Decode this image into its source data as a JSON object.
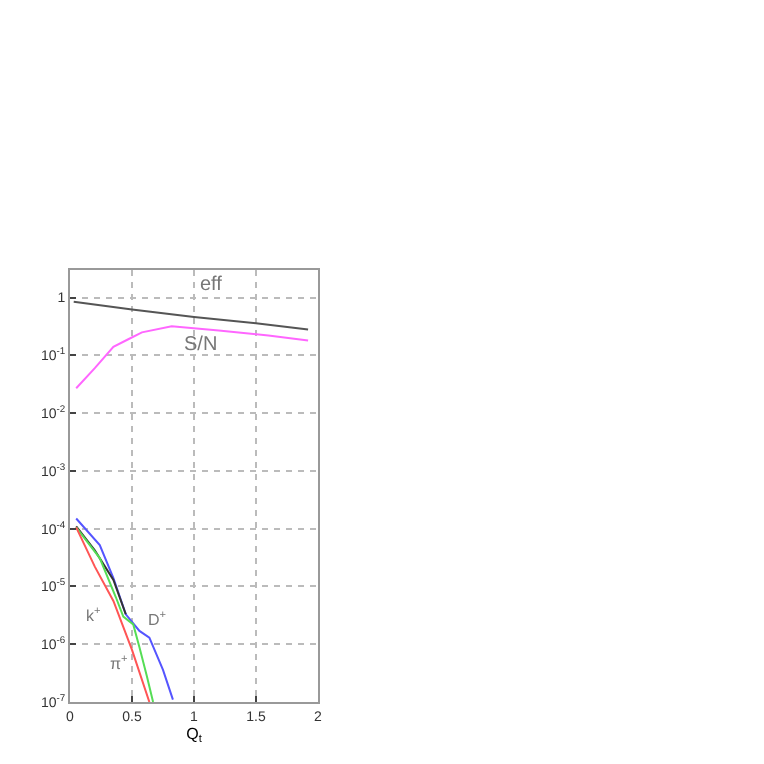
{
  "chart_data": {
    "type": "line",
    "xlabel": "Q$_{t}$",
    "log": "y",
    "grid": true,
    "marker": "none",
    "line_style": "solid",
    "xlim": [
      0,
      2
    ],
    "xticks": [
      0,
      0.5,
      1,
      1.5,
      2
    ],
    "ylim": [
      1e-07,
      3
    ],
    "yticks": [
      {
        "value": 1,
        "label": "1"
      },
      {
        "value": 0.1,
        "label": "10$^{-1}$"
      },
      {
        "value": 0.01,
        "label": "10$^{-2}$"
      },
      {
        "value": 0.001,
        "label": "10$^{-3}$"
      },
      {
        "value": 0.0001,
        "label": "10$^{-4}$"
      },
      {
        "value": 1e-05,
        "label": "10$^{-5}$"
      },
      {
        "value": 1e-06,
        "label": "10$^{-6}$"
      },
      {
        "value": 1e-07,
        "label": "10$^{-7}$"
      }
    ],
    "series": [
      {
        "color": "#555555",
        "x": [
          0.03,
          0.5,
          1,
          1.5,
          1.92
        ],
        "values": [
          0.85,
          0.62,
          0.46,
          0.36,
          0.28
        ]
      },
      {
        "color": "#ff66ff",
        "x": [
          0.05,
          0.2,
          0.35,
          0.47,
          0.58,
          0.82,
          1.2,
          1.6,
          1.92
        ],
        "values": [
          0.027,
          0.06,
          0.14,
          0.19,
          0.25,
          0.32,
          0.27,
          0.22,
          0.18
        ]
      },
      {
        "color": "#5555ff",
        "x": [
          0.05,
          0.24,
          0.35,
          0.45,
          0.56,
          0.64,
          0.75,
          0.83
        ],
        "values": [
          0.00015,
          5.2e-05,
          1.4e-05,
          3.3e-06,
          1.7e-06,
          1.3e-06,
          3.6e-07,
          1.1e-07
        ]
      },
      {
        "color": "#333333",
        "x": [
          0.05,
          0.2,
          0.35,
          0.45
        ],
        "values": [
          0.00011,
          4.2e-05,
          1.3e-05,
          3.3e-06
        ]
      },
      {
        "color": "#55dd55",
        "x": [
          0.05,
          0.24,
          0.37,
          0.43,
          0.51,
          0.56,
          0.62,
          0.67
        ],
        "values": [
          0.000105,
          3.1e-05,
          6.5e-06,
          3e-06,
          2.2e-06,
          8.9e-07,
          2.8e-07,
          1e-07
        ]
      },
      {
        "color": "#ff5555",
        "x": [
          0.05,
          0.2,
          0.35,
          0.5,
          0.64
        ],
        "values": [
          0.000105,
          2.2e-05,
          5.6e-06,
          8e-07,
          1e-07
        ]
      }
    ],
    "annotations": [
      "eff",
      "S/N",
      "k$^{+}$",
      "D$^{+}$",
      "π$^{+}$"
    ]
  }
}
